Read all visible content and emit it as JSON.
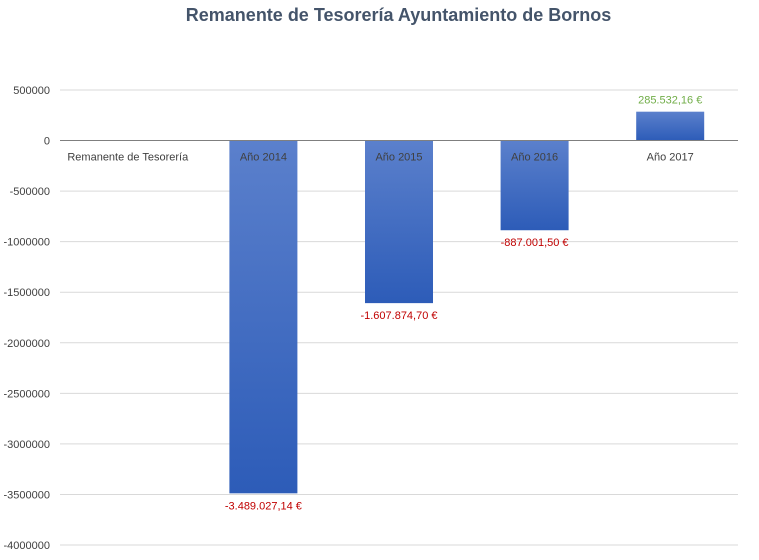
{
  "chart_data": {
    "type": "bar",
    "title": "Remanente de Tesorería Ayuntamiento de Bornos",
    "xlabel": "",
    "ylabel": "",
    "categories": [
      "Remanente de Tesorería",
      "Año 2014",
      "Año 2015",
      "Año 2016",
      "Año 2017"
    ],
    "values": [
      null,
      -3489027.14,
      -1607874.7,
      -887001.5,
      285532.16
    ],
    "data_labels": [
      "",
      "-3.489.027,14 €",
      "-1.607.874,70 €",
      "-887.001,50 €",
      "285.532,16 €"
    ],
    "ylim": [
      -4000000,
      500000
    ],
    "yticks": [
      500000,
      0,
      -500000,
      -1000000,
      -1500000,
      -2000000,
      -2500000,
      -3000000,
      -3500000,
      -4000000
    ],
    "ytick_labels": [
      "500000",
      "0",
      "-500000",
      "-1000000",
      "-1500000",
      "-2000000",
      "-2500000",
      "-3000000",
      "-3500000",
      "-4000000"
    ],
    "grid": true,
    "legend": "none",
    "colors": {
      "bar_top": "#5b80cc",
      "bar_bottom": "#2d5cb8",
      "negative_label": "#c00000",
      "positive_label": "#70ad47",
      "title": "#44546a",
      "axis_text": "#404040",
      "grid": "#d9d9d9"
    }
  }
}
